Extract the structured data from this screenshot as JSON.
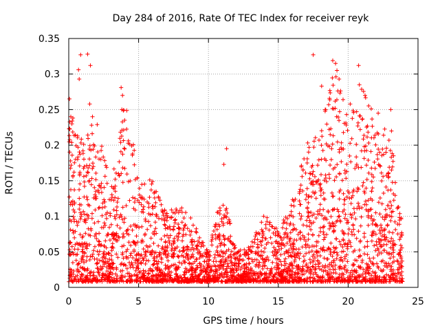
{
  "chart_data": {
    "type": "scatter",
    "title": "Day 284 of 2016, Rate Of TEC Index for receiver reyk",
    "xlabel": "GPS time / hours",
    "ylabel": "ROTI / TECUs",
    "xlim": [
      0,
      25
    ],
    "ylim": [
      0,
      0.35
    ],
    "xticks": [
      0,
      5,
      10,
      15,
      20,
      25
    ],
    "yticks": [
      0,
      0.05,
      0.1,
      0.15,
      0.2,
      0.25,
      0.3,
      0.35
    ],
    "xtick_labels": [
      "0",
      "5",
      "10",
      "15",
      "20",
      "25"
    ],
    "ytick_labels": [
      "0",
      "0.05",
      "0.1",
      "0.15",
      "0.2",
      "0.25",
      "0.3",
      "0.35"
    ],
    "grid": true,
    "marker": "+",
    "color": "#ff0000",
    "series": [
      {
        "name": "ROTI",
        "x_range": [
          0,
          23.9
        ],
        "envelope_hours": [
          0,
          1,
          2,
          3,
          4,
          5,
          6,
          7,
          8,
          9,
          10,
          11,
          12,
          13,
          14,
          15,
          16,
          17,
          18,
          19,
          20,
          21,
          22,
          23,
          24
        ],
        "envelope_max": [
          0.25,
          0.21,
          0.24,
          0.15,
          0.27,
          0.16,
          0.15,
          0.11,
          0.12,
          0.09,
          0.05,
          0.14,
          0.05,
          0.06,
          0.11,
          0.08,
          0.13,
          0.2,
          0.23,
          0.31,
          0.24,
          0.28,
          0.24,
          0.23,
          0.07
        ],
        "spikes": [
          {
            "x": 0.05,
            "y": 0.265
          },
          {
            "x": 0.15,
            "y": 0.24
          },
          {
            "x": 0.3,
            "y": 0.238
          },
          {
            "x": 0.7,
            "y": 0.306
          },
          {
            "x": 0.85,
            "y": 0.327
          },
          {
            "x": 0.75,
            "y": 0.293
          },
          {
            "x": 1.35,
            "y": 0.328
          },
          {
            "x": 1.55,
            "y": 0.312
          },
          {
            "x": 1.5,
            "y": 0.258
          },
          {
            "x": 1.7,
            "y": 0.24
          },
          {
            "x": 3.75,
            "y": 0.281
          },
          {
            "x": 3.85,
            "y": 0.27
          },
          {
            "x": 3.8,
            "y": 0.25
          },
          {
            "x": 4.0,
            "y": 0.235
          },
          {
            "x": 11.3,
            "y": 0.195
          },
          {
            "x": 11.1,
            "y": 0.173
          },
          {
            "x": 17.5,
            "y": 0.327
          },
          {
            "x": 18.1,
            "y": 0.283
          },
          {
            "x": 18.9,
            "y": 0.319
          },
          {
            "x": 19.1,
            "y": 0.315
          },
          {
            "x": 19.2,
            "y": 0.305
          },
          {
            "x": 19.35,
            "y": 0.293
          },
          {
            "x": 20.15,
            "y": 0.258
          },
          {
            "x": 20.75,
            "y": 0.312
          },
          {
            "x": 20.8,
            "y": 0.285
          },
          {
            "x": 22.15,
            "y": 0.245
          },
          {
            "x": 23.05,
            "y": 0.25
          },
          {
            "x": 23.1,
            "y": 0.22
          },
          {
            "x": 0.25,
            "y": 0.234
          }
        ]
      }
    ]
  }
}
